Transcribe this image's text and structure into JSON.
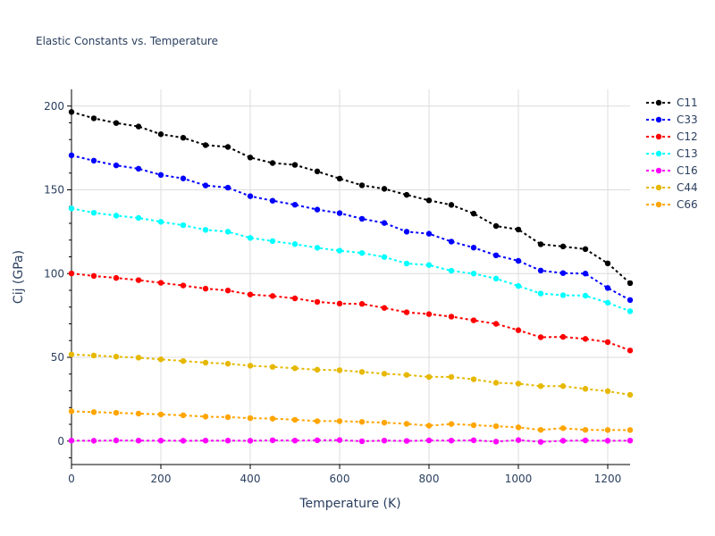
{
  "chart_data": {
    "type": "line",
    "title": "Elastic Constants vs. Temperature",
    "xlabel": "Temperature (K)",
    "ylabel": "Cij (GPa)",
    "xlim": [
      0,
      1250
    ],
    "ylim": [
      -14,
      210
    ],
    "xticks": [
      0,
      200,
      400,
      600,
      800,
      1000,
      1200
    ],
    "yticks": [
      0,
      50,
      100,
      150,
      200
    ],
    "xtick_labels": [
      "0",
      "200",
      "400",
      "600",
      "800",
      "1000",
      "1200"
    ],
    "ytick_labels": [
      "0",
      "50",
      "100",
      "150",
      "200"
    ],
    "grid": true,
    "legend_position": "right",
    "x": [
      0,
      50,
      100,
      150,
      200,
      250,
      300,
      350,
      400,
      450,
      500,
      550,
      600,
      650,
      700,
      750,
      800,
      850,
      900,
      950,
      1000,
      1050,
      1100,
      1150,
      1200,
      1250
    ],
    "series": [
      {
        "name": "C11",
        "color": "#000000",
        "values": [
          196.5,
          192.7,
          189.9,
          187.8,
          183.2,
          181.1,
          176.7,
          175.6,
          169.3,
          166.0,
          164.9,
          161.0,
          156.7,
          152.7,
          150.6,
          147.0,
          143.7,
          141.0,
          135.8,
          128.4,
          126.3,
          117.5,
          116.2,
          114.6,
          106.1,
          94.3
        ]
      },
      {
        "name": "C33",
        "color": "#0000ff",
        "values": [
          170.6,
          167.4,
          164.6,
          162.6,
          158.9,
          156.8,
          152.6,
          151.3,
          146.2,
          143.5,
          141.1,
          138.2,
          136.1,
          132.7,
          130.2,
          125.0,
          123.8,
          119.1,
          115.5,
          110.9,
          107.6,
          101.8,
          100.3,
          100.0,
          91.4,
          84.2
        ]
      },
      {
        "name": "C12",
        "color": "#ff0000",
        "values": [
          100.1,
          98.6,
          97.4,
          96.1,
          94.5,
          92.9,
          91.0,
          89.9,
          87.5,
          86.6,
          85.2,
          83.1,
          82.1,
          81.9,
          79.5,
          76.9,
          75.8,
          74.3,
          72.1,
          70.0,
          66.2,
          62.0,
          62.2,
          61.0,
          59.1,
          54.1
        ]
      },
      {
        "name": "C13",
        "color": "#00ffff",
        "values": [
          138.9,
          136.3,
          134.6,
          133.2,
          130.9,
          128.9,
          126.1,
          125.0,
          121.3,
          119.4,
          117.6,
          115.4,
          113.7,
          112.3,
          109.9,
          106.0,
          105.1,
          101.7,
          100.0,
          97.0,
          92.6,
          88.1,
          87.1,
          86.8,
          82.6,
          77.5
        ]
      },
      {
        "name": "C16",
        "color": "#ff00ff",
        "values": [
          0.3,
          0.2,
          0.4,
          0.3,
          0.3,
          0.2,
          0.3,
          0.3,
          0.2,
          0.5,
          0.3,
          0.5,
          0.6,
          -0.1,
          0.3,
          0.1,
          0.4,
          0.3,
          0.5,
          -0.3,
          0.6,
          -0.5,
          0.2,
          0.4,
          0.2,
          0.3
        ]
      },
      {
        "name": "C44",
        "color": "#e6b800",
        "values": [
          51.7,
          51.1,
          50.4,
          49.8,
          48.8,
          47.8,
          46.8,
          46.2,
          45.0,
          44.3,
          43.5,
          42.6,
          42.3,
          41.3,
          40.2,
          39.5,
          38.3,
          38.3,
          36.9,
          34.8,
          34.3,
          32.8,
          32.8,
          31.2,
          29.8,
          27.6
        ]
      },
      {
        "name": "C66",
        "color": "#ffa500",
        "values": [
          17.8,
          17.3,
          16.9,
          16.4,
          15.9,
          15.4,
          14.6,
          14.3,
          13.7,
          13.4,
          12.7,
          11.9,
          11.9,
          11.5,
          11.0,
          10.3,
          9.2,
          10.2,
          9.5,
          8.9,
          8.2,
          6.7,
          7.7,
          6.7,
          6.6,
          6.6
        ]
      }
    ]
  }
}
